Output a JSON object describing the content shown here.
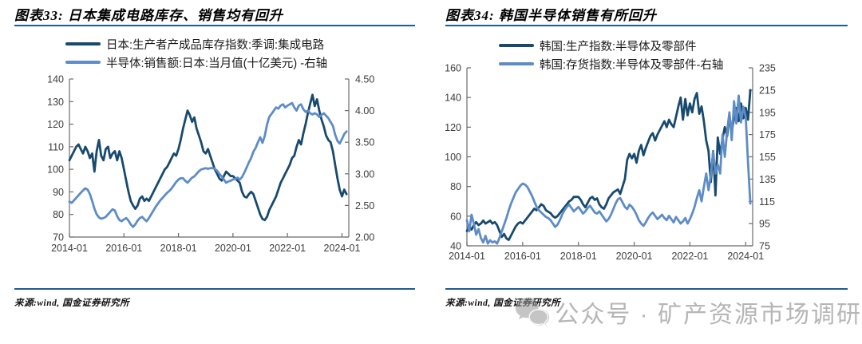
{
  "figures": [
    {
      "title": "图表33: 日本集成电路库存、销售均有回升",
      "source": "来源:wind, 国金证券研究所"
    },
    {
      "title": "图表34: 韩国半导体销售有所回升",
      "source": "来源:wind, 国金证券研究所"
    }
  ],
  "watermark": {
    "text": "公众号 · 矿产资源市场调研",
    "icon": "wechat-bubbles-icon",
    "color": "#b2b2b2"
  },
  "colors": {
    "dark_line": "#174a6e",
    "light_line": "#5d8cc6",
    "rule_navy": "#1f5c8d",
    "axis_gray": "#6b6b6b"
  },
  "chart_data": [
    {
      "type": "line",
      "title": "图表33: 日本集成电路库存、销售均有回升",
      "x_start": "2014-01",
      "x_end": "2024-03",
      "x_points": 123,
      "x_ticks": [
        "2014-01",
        "2016-01",
        "2018-01",
        "2020-01",
        "2022-01",
        "2024-01"
      ],
      "x_tick_step_months": 24,
      "grid": false,
      "legend_position": "top",
      "left_axis": {
        "min": 70,
        "max": 140,
        "ticks": [
          "140",
          "130",
          "120",
          "110",
          "100",
          "90",
          "80",
          "70"
        ]
      },
      "right_axis": {
        "min": 2.0,
        "max": 4.5,
        "ticks": [
          "4.50",
          "4.00",
          "3.50",
          "3.00",
          "2.50",
          "2.00"
        ]
      },
      "series": [
        {
          "name": "日本:生产者产成品库存指数:季调:集成电路",
          "axis": "left",
          "color": "#174a6e",
          "values": [
            104,
            106,
            108,
            110,
            111,
            109,
            107,
            110,
            108,
            105,
            107,
            99,
            108,
            113,
            106,
            104,
            109,
            110,
            105,
            107,
            108,
            104,
            108,
            105,
            100,
            95,
            90,
            86,
            84,
            82.5,
            84,
            87,
            88,
            86,
            87,
            86,
            88,
            90,
            92,
            94,
            96,
            98,
            100,
            101,
            103,
            105,
            107,
            106,
            109,
            113,
            118,
            122,
            126,
            124,
            121,
            123,
            118,
            115,
            112,
            108,
            107,
            109,
            106,
            103,
            100,
            98,
            96,
            95,
            97,
            99,
            98,
            97,
            97,
            96,
            95,
            94,
            90,
            88,
            87.5,
            89,
            90,
            89,
            86,
            83,
            80,
            78,
            77.5,
            79,
            82,
            84,
            86,
            88,
            91,
            94,
            96,
            98,
            100,
            102,
            105,
            106,
            110,
            113,
            111,
            116,
            120,
            125,
            129,
            133,
            128,
            131,
            126,
            122,
            119,
            115,
            113,
            112,
            108,
            102,
            96,
            91,
            88,
            91,
            89
          ]
        },
        {
          "name": "半导体:销售额:日本:当月值(十亿美元) -右轴",
          "axis": "right",
          "color": "#5d8cc6",
          "values": [
            2.56,
            2.54,
            2.58,
            2.62,
            2.66,
            2.7,
            2.74,
            2.77,
            2.75,
            2.68,
            2.57,
            2.45,
            2.36,
            2.31,
            2.29,
            2.3,
            2.32,
            2.36,
            2.4,
            2.44,
            2.42,
            2.33,
            2.27,
            2.25,
            2.28,
            2.3,
            2.26,
            2.2,
            2.16,
            2.2,
            2.26,
            2.3,
            2.32,
            2.28,
            2.25,
            2.3,
            2.36,
            2.42,
            2.48,
            2.53,
            2.58,
            2.62,
            2.66,
            2.7,
            2.73,
            2.77,
            2.82,
            2.87,
            2.91,
            2.93,
            2.93,
            2.89,
            2.86,
            2.9,
            2.94,
            2.96,
            3.0,
            3.04,
            3.07,
            3.08,
            3.09,
            3.08,
            3.09,
            3.09,
            3.08,
            3.05,
            3.0,
            2.96,
            2.91,
            2.86,
            2.88,
            2.89,
            2.91,
            2.92,
            2.94,
            2.91,
            2.95,
            3.02,
            3.1,
            3.18,
            3.25,
            3.35,
            3.41,
            3.5,
            3.58,
            3.49,
            3.6,
            3.78,
            3.9,
            3.95,
            4.0,
            4.05,
            4.03,
            4.08,
            4.1,
            4.05,
            4.08,
            4.1,
            4.12,
            4.05,
            4.0,
            4.08,
            4.1,
            4.02,
            3.98,
            4.0,
            3.96,
            3.94,
            3.96,
            3.94,
            3.9,
            3.93,
            3.96,
            3.92,
            3.88,
            3.82,
            3.76,
            3.62,
            3.52,
            3.48,
            3.55,
            3.63,
            3.67
          ]
        }
      ]
    },
    {
      "type": "line",
      "title": "图表34: 韩国半导体销售有所回升",
      "x_start": "2014-01",
      "x_end": "2024-03",
      "x_points": 123,
      "x_ticks": [
        "2014-01",
        "2016-01",
        "2018-01",
        "2020-01",
        "2022-01",
        "2024-01"
      ],
      "x_tick_step_months": 24,
      "grid": false,
      "legend_position": "top",
      "left_axis": {
        "min": 40,
        "max": 160,
        "ticks": [
          "160",
          "140",
          "120",
          "100",
          "80",
          "60",
          "40"
        ]
      },
      "right_axis": {
        "min": 75,
        "max": 235,
        "ticks": [
          "235",
          "215",
          "195",
          "175",
          "155",
          "135",
          "115",
          "95",
          "75"
        ]
      },
      "series": [
        {
          "name": "韩国:生产指数:半导体及零部件",
          "axis": "left",
          "color": "#174a6e",
          "values": [
            50,
            53,
            51,
            54,
            56,
            54,
            55,
            57,
            55,
            56,
            57,
            55,
            56,
            54,
            50,
            46,
            48,
            45,
            44,
            47,
            50,
            53,
            55,
            56,
            55,
            57,
            59,
            61,
            63,
            65,
            64,
            66,
            68,
            67,
            64,
            63,
            62,
            60,
            59,
            60,
            62,
            64,
            66,
            68,
            70,
            71,
            73,
            73,
            73,
            71,
            68,
            66,
            69,
            72,
            73,
            71,
            72,
            68,
            66,
            65,
            68,
            72,
            74,
            76,
            77,
            78,
            75,
            80,
            85,
            98,
            102,
            99,
            102,
            96,
            104,
            108,
            101,
            106,
            110,
            114,
            116,
            111,
            115,
            118,
            121,
            124,
            120,
            125,
            122,
            120,
            127,
            134,
            140,
            125,
            139,
            128,
            136,
            130,
            139,
            143,
            129,
            134,
            124,
            111,
            104,
            83,
            104,
            74,
            113,
            102,
            112,
            120,
            114,
            128,
            117,
            126,
            133,
            124,
            136,
            126,
            133,
            125,
            145
          ]
        },
        {
          "name": "韩国:存货指数:半导体及零部件-右轴",
          "axis": "right",
          "color": "#5d8cc6",
          "values": [
            98,
            88,
            103,
            95,
            85,
            90,
            82,
            78,
            84,
            77,
            80,
            78,
            79,
            77,
            82,
            88,
            94,
            100,
            107,
            113,
            118,
            123,
            126,
            129,
            131,
            130,
            128,
            124,
            120,
            115,
            110,
            107,
            105,
            103,
            101,
            100,
            98,
            95,
            92,
            94,
            98,
            103,
            107,
            110,
            112,
            109,
            106,
            108,
            110,
            107,
            104,
            106,
            109,
            111,
            108,
            105,
            104,
            106,
            103,
            100,
            97,
            99,
            103,
            108,
            113,
            117,
            118,
            114,
            110,
            108,
            112,
            110,
            107,
            103,
            98,
            95,
            93,
            96,
            100,
            103,
            105,
            102,
            99,
            101,
            103,
            100,
            98,
            102,
            99,
            96,
            101,
            98,
            95,
            97,
            100,
            95,
            99,
            104,
            110,
            118,
            125,
            115,
            128,
            140,
            125,
            138,
            160,
            140,
            148,
            140,
            175,
            155,
            178,
            195,
            170,
            205,
            185,
            210,
            186,
            200,
            191,
            150,
            113
          ]
        }
      ]
    }
  ]
}
